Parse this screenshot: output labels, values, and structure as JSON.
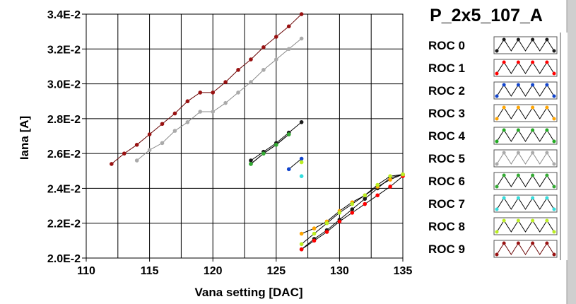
{
  "chart_data": {
    "type": "line",
    "title": "P_2x5_107_A",
    "xlabel": "Vana setting [DAC]",
    "ylabel": "Iana [A]",
    "xlim": [
      110,
      135
    ],
    "ylim": [
      0.02,
      0.034
    ],
    "x_ticks": [
      110,
      115,
      120,
      125,
      130,
      135
    ],
    "x_tick_labels": [
      "110",
      "115",
      "120",
      "125",
      "130",
      "135"
    ],
    "y_ticks": [
      0.02,
      0.022,
      0.024,
      0.026,
      0.028,
      0.03,
      0.032,
      0.034
    ],
    "y_tick_labels": [
      "2.0E-2",
      "2.2E-2",
      "2.4E-2",
      "2.6E-2",
      "2.8E-2",
      "3.0E-2",
      "3.2E-2",
      "3.4E-2"
    ],
    "grid": true,
    "legend_position": "right",
    "series": [
      {
        "name": "ROC 0",
        "color": "#1a1a1a",
        "segments": [
          [
            [
              123,
              0.0256
            ],
            [
              124,
              0.0261
            ],
            [
              125,
              0.0266
            ],
            [
              126,
              0.0272
            ],
            [
              127,
              0.0278
            ]
          ],
          [
            [
              127,
              0.0205
            ],
            [
              128,
              0.0211
            ],
            [
              129,
              0.0216
            ],
            [
              130,
              0.0222
            ],
            [
              131,
              0.0228
            ],
            [
              132,
              0.0234
            ],
            [
              133,
              0.024
            ],
            [
              134,
              0.0246
            ],
            [
              135,
              0.0248
            ]
          ]
        ]
      },
      {
        "name": "ROC 1",
        "color": "#ff0000",
        "segments": [
          [
            [
              127,
              0.0205
            ],
            [
              128,
              0.021
            ],
            [
              129,
              0.0215
            ],
            [
              130,
              0.0221
            ],
            [
              131,
              0.0226
            ],
            [
              132,
              0.0231
            ],
            [
              133,
              0.0236
            ],
            [
              134,
              0.0241
            ],
            [
              135,
              0.0247
            ]
          ]
        ]
      },
      {
        "name": "ROC 2",
        "color": "#1144cc",
        "segments": [
          [
            [
              126,
              0.0251
            ],
            [
              127,
              0.0257
            ]
          ]
        ]
      },
      {
        "name": "ROC 3",
        "color": "#ffa500",
        "segments": [
          [
            [
              127,
              0.0214
            ],
            [
              128,
              0.0217
            ],
            [
              129,
              0.0221
            ],
            [
              130,
              0.0227
            ],
            [
              131,
              0.0232
            ],
            [
              132,
              0.0236
            ],
            [
              133,
              0.0241
            ],
            [
              134,
              0.0245
            ],
            [
              135,
              0.0248
            ]
          ]
        ]
      },
      {
        "name": "ROC 4",
        "color": "#22aa22",
        "segments": [
          [
            [
              123,
              0.0254
            ],
            [
              124,
              0.026
            ],
            [
              125,
              0.0265
            ],
            [
              126,
              0.0271
            ]
          ]
        ]
      },
      {
        "name": "ROC 5",
        "color": "#aaaaaa",
        "segments": [
          [
            [
              114,
              0.0256
            ],
            [
              115,
              0.0262
            ],
            [
              116,
              0.0266
            ],
            [
              117,
              0.0273
            ],
            [
              118,
              0.0278
            ],
            [
              119,
              0.0284
            ],
            [
              120,
              0.0284
            ],
            [
              121,
              0.0289
            ],
            [
              122,
              0.0295
            ],
            [
              123,
              0.0301
            ],
            [
              124,
              0.0308
            ],
            [
              125,
              0.0314
            ],
            [
              126,
              0.032
            ],
            [
              127,
              0.0326
            ]
          ]
        ]
      },
      {
        "name": "ROC 6",
        "color": "#33aa33",
        "segments": [
          [
            [
              123,
              0.0254
            ],
            [
              124,
              0.026
            ],
            [
              125,
              0.0265
            ],
            [
              126,
              0.0271
            ]
          ]
        ]
      },
      {
        "name": "ROC 7",
        "color": "#33dddd",
        "segments": [
          [
            [
              127,
              0.0247
            ]
          ]
        ]
      },
      {
        "name": "ROC 8",
        "color": "#bbee22",
        "segments": [
          [
            [
              127,
              0.0255
            ]
          ],
          [
            [
              127,
              0.0208
            ],
            [
              128,
              0.0214
            ],
            [
              129,
              0.022
            ],
            [
              130,
              0.0226
            ],
            [
              131,
              0.0231
            ],
            [
              132,
              0.0236
            ],
            [
              133,
              0.0242
            ],
            [
              134,
              0.0247
            ],
            [
              135,
              0.0248
            ]
          ]
        ]
      },
      {
        "name": "ROC 9",
        "color": "#991111",
        "segments": [
          [
            [
              112,
              0.0254
            ],
            [
              113,
              0.026
            ],
            [
              114,
              0.0265
            ],
            [
              115,
              0.0271
            ],
            [
              116,
              0.0277
            ],
            [
              117,
              0.0283
            ],
            [
              118,
              0.029
            ],
            [
              119,
              0.0295
            ],
            [
              120,
              0.0295
            ],
            [
              121,
              0.0301
            ],
            [
              122,
              0.0308
            ],
            [
              123,
              0.0314
            ],
            [
              124,
              0.0321
            ],
            [
              125,
              0.0327
            ],
            [
              126,
              0.0333
            ],
            [
              127,
              0.034
            ]
          ]
        ]
      }
    ]
  }
}
